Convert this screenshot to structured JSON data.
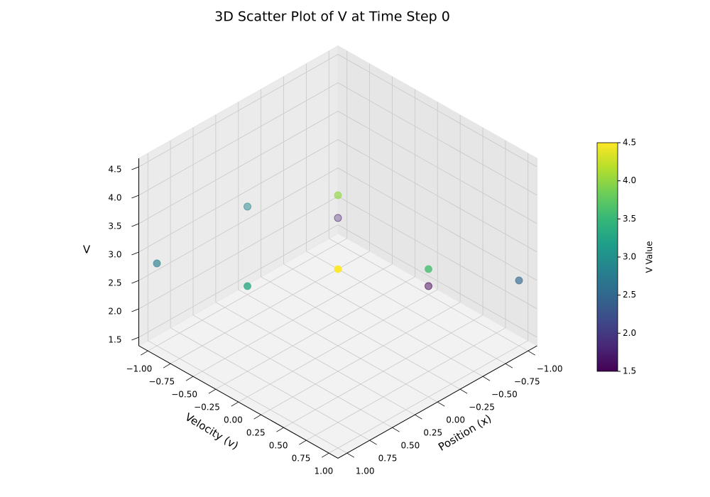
{
  "chart_data": {
    "type": "scatter3d",
    "title": "3D Scatter Plot of V at Time Step 0",
    "x_label": "Position (x)",
    "y_label": "Velocity (v)",
    "z_label": "V",
    "x": [
      1,
      -1,
      0,
      -1,
      0,
      1,
      -1,
      0,
      1
    ],
    "y": [
      -1,
      1,
      -1,
      0,
      1,
      0,
      -1,
      0,
      1
    ],
    "z": [
      2.8,
      2.5,
      2.9,
      1.5,
      3.6,
      3.3,
      1.8,
      4.0,
      4.5
    ],
    "colormap": "viridis",
    "xlim": [
      -1.1,
      1.1
    ],
    "ylim": [
      -1.1,
      1.1
    ],
    "zlim": [
      1.35,
      4.65
    ],
    "xticks": [
      {
        "value": -1,
        "label": "−1.00"
      },
      {
        "value": -0.75,
        "label": "−0.75"
      },
      {
        "value": -0.5,
        "label": "−0.50"
      },
      {
        "value": -0.25,
        "label": "−0.25"
      },
      {
        "value": 0,
        "label": "0.00"
      },
      0.25,
      {
        "value": 0.5,
        "label": "0.50"
      },
      0.75,
      {
        "value": 1,
        "label": "1.00"
      }
    ],
    "yticks": [
      {
        "value": -1,
        "label": "−1.00"
      },
      {
        "value": -0.75,
        "label": "−0.75"
      },
      {
        "value": -0.5,
        "label": "−0.50"
      },
      {
        "value": -0.25,
        "label": "−0.25"
      },
      {
        "value": 0,
        "label": "0.00"
      },
      0.25,
      {
        "value": 0.5,
        "label": "0.50"
      },
      0.75,
      {
        "value": 1,
        "label": "1.00"
      }
    ],
    "zticks": [
      1.5,
      {
        "value": 2,
        "label": "2.0"
      },
      2.5,
      {
        "value": 3,
        "label": "3.0"
      },
      3.5,
      {
        "value": 4,
        "label": "4.0"
      },
      4.5
    ],
    "grid": true,
    "colorbar": {
      "label": "V Value",
      "lim": [
        1.5,
        4.5
      ],
      "ticks": [
        1.5,
        {
          "value": 2,
          "label": "2.0"
        },
        2.5,
        {
          "value": 3,
          "label": "3.0"
        },
        3.5,
        {
          "value": 4,
          "label": "4.0"
        },
        4.5
      ]
    }
  }
}
